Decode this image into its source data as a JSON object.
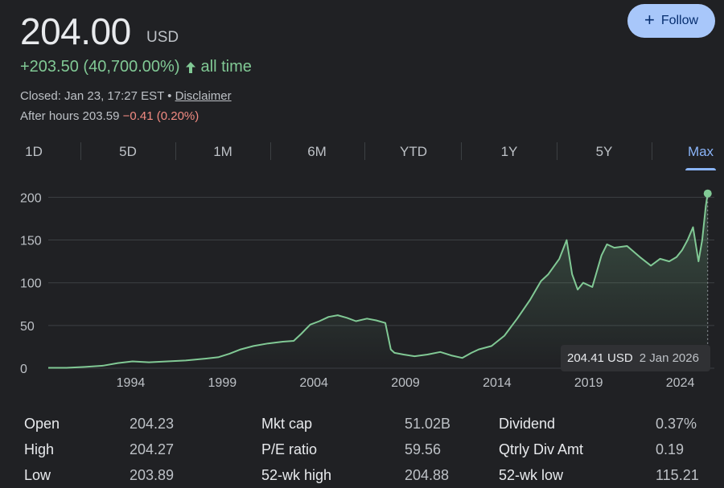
{
  "header": {
    "price": "204.00",
    "currency": "USD",
    "follow_label": "Follow",
    "change": "+203.50 (40,700.00%)",
    "change_period": "all time",
    "closed_text": "Closed: Jan 23, 17:27 EST •",
    "disclaimer": "Disclaimer",
    "after_hours_label": "After hours 203.59",
    "after_hours_change": "−0.41 (0.20%)"
  },
  "tabs": [
    "1D",
    "5D",
    "1M",
    "6M",
    "YTD",
    "1Y",
    "5Y",
    "Max"
  ],
  "active_tab": "Max",
  "tooltip": {
    "price": "204.41 USD",
    "date": "2 Jan 2026"
  },
  "colors": {
    "line": "#81c995",
    "accent": "#8ab4f8",
    "negative": "#f28b82",
    "background": "#202124"
  },
  "chart_data": {
    "type": "area",
    "y_ticks": [
      "0",
      "50",
      "100",
      "150",
      "200"
    ],
    "x_ticks": [
      "1994",
      "1999",
      "2004",
      "2009",
      "2014",
      "2019",
      "2024"
    ],
    "ylim": [
      0,
      210
    ],
    "xlim": [
      1990.0,
      2026.1
    ],
    "grid": true,
    "series": [
      {
        "x": [
          1990.0,
          1991.0,
          1992.0,
          1993.0,
          1993.8,
          1994.6,
          1995.5,
          1996.5,
          1997.5,
          1998.5,
          1999.3,
          1999.9,
          2000.5,
          2001.2,
          2002.0,
          2002.8,
          2003.4,
          2003.8,
          2004.3,
          2004.8,
          2005.3,
          2005.8,
          2006.3,
          2006.8,
          2007.4,
          2007.9,
          2008.4,
          2008.7,
          2008.9,
          2009.4,
          2010.0,
          2010.7,
          2011.4,
          2012.0,
          2012.6,
          2013.1,
          2013.5,
          2014.2,
          2014.9,
          2015.6,
          2016.3,
          2016.9,
          2017.3,
          2017.9,
          2018.3,
          2018.6,
          2018.9,
          2019.2,
          2019.7,
          2020.2,
          2020.5,
          2020.9,
          2021.6,
          2022.3,
          2022.9,
          2023.4,
          2023.9,
          2024.3,
          2024.6,
          2024.9,
          2025.2,
          2025.5,
          2025.7,
          2025.9,
          2026.0
        ],
        "y": [
          0.5,
          0.5,
          1.5,
          3,
          6,
          8,
          7,
          8,
          9,
          11,
          13,
          17,
          22,
          26,
          29,
          31,
          32,
          40,
          51,
          55,
          60,
          62,
          59,
          55,
          58,
          56,
          53,
          22,
          18,
          16,
          14,
          16,
          19,
          15,
          12,
          18,
          22,
          26,
          38,
          58,
          80,
          102,
          110,
          128,
          150,
          110,
          92,
          100,
          95,
          132,
          145,
          141,
          143,
          130,
          120,
          128,
          125,
          130,
          138,
          150,
          165,
          125,
          150,
          190,
          204.41
        ]
      }
    ]
  }
}
